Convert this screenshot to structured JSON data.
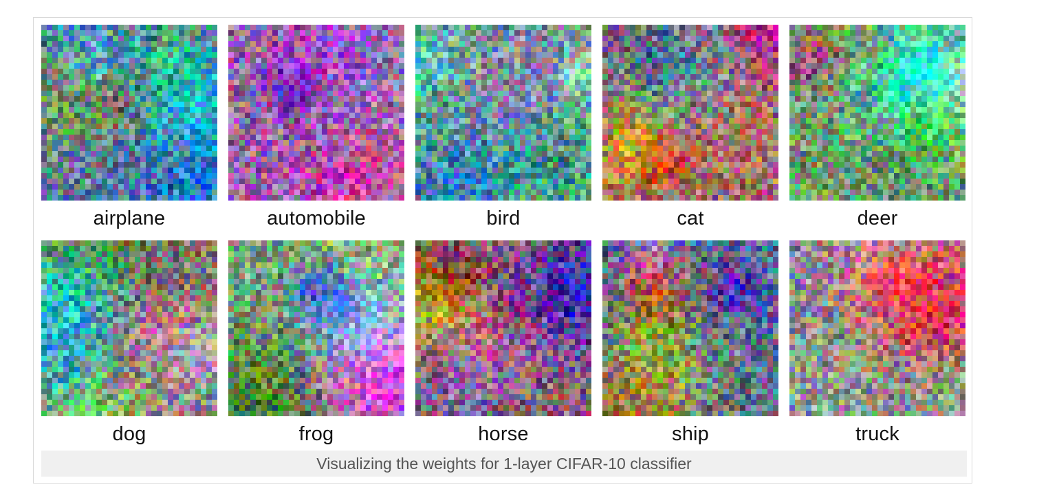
{
  "figure": {
    "caption": "Visualizing the weights for 1-layer CIFAR-10 classifier",
    "classes": [
      {
        "label": "airplane",
        "tint": "#5a78a0"
      },
      {
        "label": "automobile",
        "tint": "#9a6aa8"
      },
      {
        "label": "bird",
        "tint": "#6fa07c"
      },
      {
        "label": "cat",
        "tint": "#9a7070"
      },
      {
        "label": "deer",
        "tint": "#6e9670"
      },
      {
        "label": "dog",
        "tint": "#8a7a78"
      },
      {
        "label": "frog",
        "tint": "#7ea07a"
      },
      {
        "label": "horse",
        "tint": "#8a6a6e"
      },
      {
        "label": "ship",
        "tint": "#5e7090"
      },
      {
        "label": "truck",
        "tint": "#8f8a98"
      }
    ]
  }
}
